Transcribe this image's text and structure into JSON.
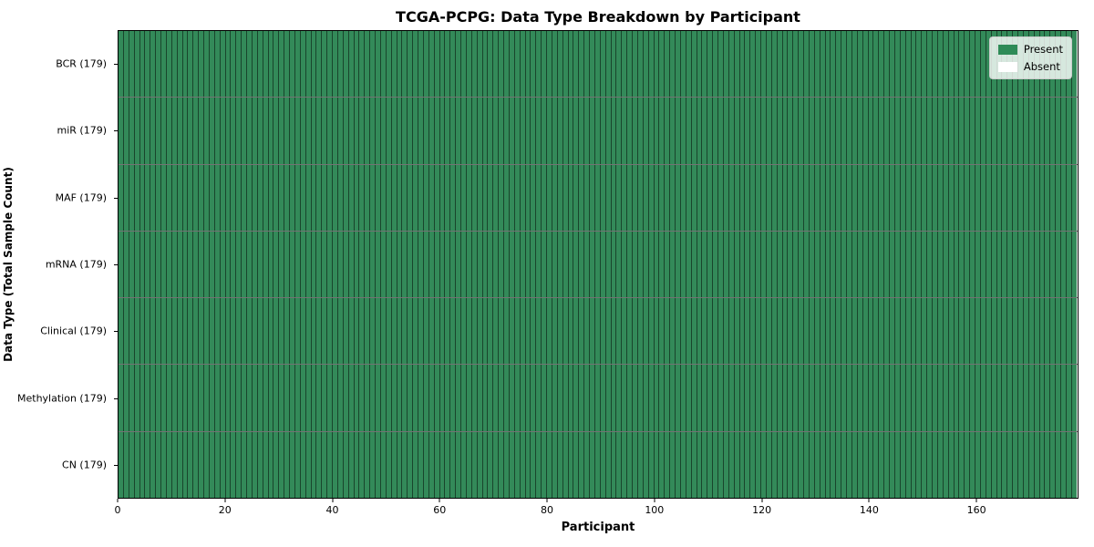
{
  "title": "TCGA-PCPG: Data Type Breakdown by Participant",
  "chart_data": {
    "type": "heatmap",
    "title": "TCGA-PCPG: Data Type Breakdown by Participant",
    "xlabel": "Participant",
    "ylabel": "Data Type (Total Sample Count)",
    "x_ticks": [
      0,
      20,
      40,
      60,
      80,
      100,
      120,
      140,
      160
    ],
    "xlim": [
      0,
      179
    ],
    "n_participants": 179,
    "rows": [
      {
        "label": "BCR (179)",
        "data_type": "BCR",
        "total_samples": 179,
        "present_count": 179,
        "absent_count": 0
      },
      {
        "label": "miR (179)",
        "data_type": "miR",
        "total_samples": 179,
        "present_count": 179,
        "absent_count": 0
      },
      {
        "label": "MAF (179)",
        "data_type": "MAF",
        "total_samples": 179,
        "present_count": 179,
        "absent_count": 0
      },
      {
        "label": "mRNA (179)",
        "data_type": "mRNA",
        "total_samples": 179,
        "present_count": 179,
        "absent_count": 0
      },
      {
        "label": "Clinical (179)",
        "data_type": "Clinical",
        "total_samples": 179,
        "present_count": 179,
        "absent_count": 0
      },
      {
        "label": "Methylation (179)",
        "data_type": "Methylation",
        "total_samples": 179,
        "present_count": 179,
        "absent_count": 0
      },
      {
        "label": "CN (179)",
        "data_type": "CN",
        "total_samples": 179,
        "present_count": 179,
        "absent_count": 0
      }
    ],
    "legend": [
      {
        "label": "Present",
        "color": "#2e8b57"
      },
      {
        "label": "Absent",
        "color": "#ffffff"
      }
    ],
    "legend_position": "upper right",
    "grid": false,
    "colors": {
      "present": "#338a59",
      "absent": "#ffffff",
      "cell_edge": "rgba(0,0,0,0.5)",
      "row_separator": "rgba(0,0,0,0.55)",
      "axis_border": "#000000"
    }
  }
}
